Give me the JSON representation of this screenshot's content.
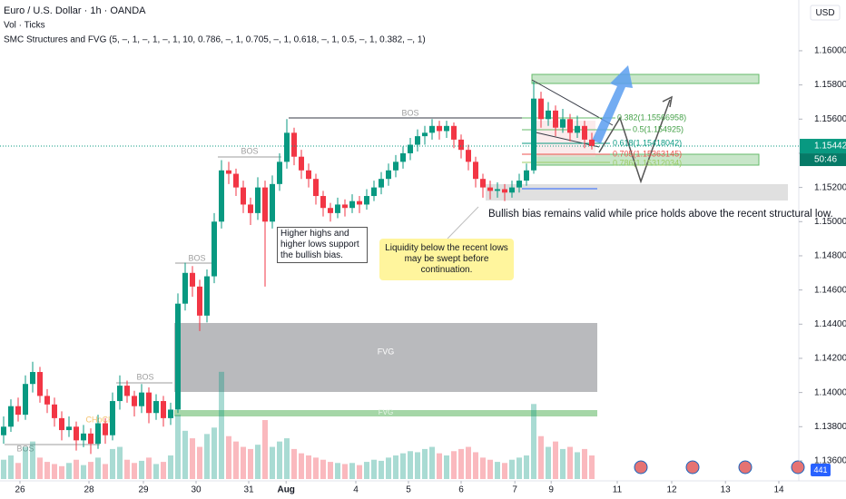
{
  "chart_data": {
    "type": "candlestick",
    "title": "Euro / U.S. Dollar · 1h · OANDA",
    "indicators": [
      "Vol · Ticks",
      "SMC Structures and FVG (5, –, 1, –, 1, –, 1, 10, 0.786, –, 1, 0.705, –, 1, 0.618, –, 1, 0.5, –, 1, 0.382, –, 1)"
    ],
    "currency": "USD",
    "up_color": "#089981",
    "down_color": "#f23645",
    "ylim": [
      1.13483,
      1.16297
    ],
    "yticks": [
      {
        "value": 1.16,
        "label": "1.16000"
      },
      {
        "value": 1.158,
        "label": "1.15800"
      },
      {
        "value": 1.156,
        "label": "1.15600"
      },
      {
        "value": 1.154,
        "label": "1.15400"
      },
      {
        "value": 1.152,
        "label": "1.15200"
      },
      {
        "value": 1.15,
        "label": "1.15000"
      },
      {
        "value": 1.148,
        "label": "1.14800"
      },
      {
        "value": 1.146,
        "label": "1.14600"
      },
      {
        "value": 1.144,
        "label": "1.14400"
      },
      {
        "value": 1.142,
        "label": "1.14200"
      },
      {
        "value": 1.14,
        "label": "1.14000"
      },
      {
        "value": 1.138,
        "label": "1.13800"
      },
      {
        "value": 1.136,
        "label": "1.13600"
      }
    ],
    "xlim": [
      0,
      110
    ],
    "xticks": [
      {
        "value": 2.75,
        "label": "26"
      },
      {
        "value": 12.25,
        "label": "28"
      },
      {
        "value": 19.75,
        "label": "29"
      },
      {
        "value": 27,
        "label": "30"
      },
      {
        "value": 34.25,
        "label": "31"
      },
      {
        "value": 39.4,
        "label": "Aug"
      },
      {
        "value": 49,
        "label": "4"
      },
      {
        "value": 56.25,
        "label": "5"
      },
      {
        "value": 63.5,
        "label": "6"
      },
      {
        "value": 70.9,
        "label": "7"
      },
      {
        "value": 75.9,
        "label": "9"
      },
      {
        "value": 85,
        "label": "11"
      },
      {
        "value": 92.5,
        "label": "12"
      },
      {
        "value": 99.9,
        "label": "13"
      },
      {
        "value": 107.25,
        "label": "14"
      }
    ],
    "grid": false,
    "ohlc": [
      [
        1.1375,
        1.1386,
        1.137,
        1.138
      ],
      [
        1.138,
        1.1396,
        1.1377,
        1.1392
      ],
      [
        1.1392,
        1.1397,
        1.1383,
        1.1387
      ],
      [
        1.1387,
        1.141,
        1.1384,
        1.1405
      ],
      [
        1.1405,
        1.1418,
        1.14,
        1.1412
      ],
      [
        1.1412,
        1.1415,
        1.1394,
        1.1398
      ],
      [
        1.1398,
        1.1402,
        1.1388,
        1.1393
      ],
      [
        1.1393,
        1.1397,
        1.138,
        1.1385
      ],
      [
        1.1385,
        1.1389,
        1.1372,
        1.1378
      ],
      [
        1.1378,
        1.1386,
        1.1374,
        1.138
      ],
      [
        1.138,
        1.1383,
        1.1366,
        1.1372
      ],
      [
        1.1372,
        1.1381,
        1.1368,
        1.1376
      ],
      [
        1.1376,
        1.1379,
        1.1364,
        1.137
      ],
      [
        1.137,
        1.1387,
        1.1367,
        1.1382
      ],
      [
        1.1382,
        1.1385,
        1.137,
        1.1375
      ],
      [
        1.1375,
        1.14,
        1.1372,
        1.1395
      ],
      [
        1.1395,
        1.141,
        1.139,
        1.1404
      ],
      [
        1.1404,
        1.1407,
        1.1394,
        1.1398
      ],
      [
        1.1398,
        1.1401,
        1.1386,
        1.1392
      ],
      [
        1.1392,
        1.1405,
        1.1388,
        1.14
      ],
      [
        1.14,
        1.1403,
        1.1382,
        1.1388
      ],
      [
        1.1388,
        1.1399,
        1.1384,
        1.1395
      ],
      [
        1.1395,
        1.1398,
        1.138,
        1.1385
      ],
      [
        1.1385,
        1.1394,
        1.1381,
        1.139
      ],
      [
        1.139,
        1.1458,
        1.1388,
        1.1452
      ],
      [
        1.1452,
        1.1476,
        1.1448,
        1.147
      ],
      [
        1.147,
        1.1474,
        1.1456,
        1.1462
      ],
      [
        1.1462,
        1.1466,
        1.1436,
        1.1445
      ],
      [
        1.1445,
        1.1472,
        1.1441,
        1.1468
      ],
      [
        1.1468,
        1.1505,
        1.1464,
        1.15
      ],
      [
        1.15,
        1.1536,
        1.1496,
        1.153
      ],
      [
        1.153,
        1.1535,
        1.1522,
        1.1528
      ],
      [
        1.1528,
        1.1531,
        1.1515,
        1.152
      ],
      [
        1.152,
        1.1524,
        1.1505,
        1.151
      ],
      [
        1.151,
        1.1514,
        1.1498,
        1.1505
      ],
      [
        1.1505,
        1.1526,
        1.1501,
        1.152
      ],
      [
        1.152,
        1.1524,
        1.1462,
        1.15
      ],
      [
        1.15,
        1.1527,
        1.1496,
        1.1522
      ],
      [
        1.1522,
        1.154,
        1.1518,
        1.1535
      ],
      [
        1.1535,
        1.156,
        1.1531,
        1.1552
      ],
      [
        1.1552,
        1.1555,
        1.1533,
        1.1538
      ],
      [
        1.1538,
        1.1542,
        1.1525,
        1.153
      ],
      [
        1.153,
        1.1534,
        1.152,
        1.1525
      ],
      [
        1.1525,
        1.1528,
        1.151,
        1.1515
      ],
      [
        1.1515,
        1.1518,
        1.1503,
        1.1508
      ],
      [
        1.1508,
        1.1511,
        1.15,
        1.1505
      ],
      [
        1.1505,
        1.1514,
        1.1502,
        1.151
      ],
      [
        1.151,
        1.1513,
        1.1503,
        1.1508
      ],
      [
        1.1508,
        1.1516,
        1.1505,
        1.1512
      ],
      [
        1.1512,
        1.1515,
        1.1505,
        1.151
      ],
      [
        1.151,
        1.1519,
        1.1507,
        1.1515
      ],
      [
        1.1515,
        1.1524,
        1.1512,
        1.152
      ],
      [
        1.152,
        1.1529,
        1.1516,
        1.1525
      ],
      [
        1.1525,
        1.1534,
        1.1521,
        1.153
      ],
      [
        1.153,
        1.1539,
        1.1526,
        1.1535
      ],
      [
        1.1535,
        1.1544,
        1.1531,
        1.154
      ],
      [
        1.154,
        1.1549,
        1.1536,
        1.1545
      ],
      [
        1.1545,
        1.1554,
        1.1541,
        1.155
      ],
      [
        1.155,
        1.1556,
        1.1545,
        1.1552
      ],
      [
        1.1552,
        1.156,
        1.1548,
        1.1556
      ],
      [
        1.1556,
        1.1559,
        1.1548,
        1.1553
      ],
      [
        1.1553,
        1.1559,
        1.1549,
        1.1556
      ],
      [
        1.1556,
        1.1558,
        1.1543,
        1.1548
      ],
      [
        1.1548,
        1.1551,
        1.1537,
        1.1542
      ],
      [
        1.1542,
        1.1545,
        1.153,
        1.1535
      ],
      [
        1.1535,
        1.1538,
        1.152,
        1.1525
      ],
      [
        1.1525,
        1.1528,
        1.1514,
        1.152
      ],
      [
        1.152,
        1.1524,
        1.1513,
        1.1518
      ],
      [
        1.1518,
        1.1523,
        1.1514,
        1.1519
      ],
      [
        1.1519,
        1.1522,
        1.1512,
        1.1517
      ],
      [
        1.1517,
        1.1524,
        1.1514,
        1.152
      ],
      [
        1.152,
        1.1528,
        1.1517,
        1.1524
      ],
      [
        1.1524,
        1.1534,
        1.1521,
        1.153
      ],
      [
        1.153,
        1.1582,
        1.1528,
        1.1572
      ],
      [
        1.1572,
        1.1576,
        1.1555,
        1.156
      ],
      [
        1.156,
        1.157,
        1.1556,
        1.1565
      ],
      [
        1.1565,
        1.1568,
        1.155,
        1.1555
      ],
      [
        1.1555,
        1.1566,
        1.1552,
        1.156
      ],
      [
        1.156,
        1.1563,
        1.1547,
        1.1552
      ],
      [
        1.1552,
        1.1562,
        1.1549,
        1.1556
      ],
      [
        1.1556,
        1.1559,
        1.1543,
        1.1548
      ],
      [
        1.1548,
        1.1552,
        1.15422,
        1.15442
      ]
    ],
    "volume": [
      18,
      22,
      15,
      30,
      35,
      20,
      16,
      14,
      12,
      15,
      18,
      13,
      16,
      20,
      14,
      28,
      30,
      18,
      15,
      17,
      20,
      14,
      16,
      22,
      60,
      45,
      38,
      30,
      42,
      48,
      100,
      40,
      35,
      30,
      28,
      32,
      55,
      30,
      35,
      38,
      28,
      24,
      22,
      20,
      18,
      16,
      15,
      14,
      15,
      13,
      16,
      18,
      17,
      20,
      22,
      24,
      26,
      25,
      28,
      30,
      24,
      22,
      26,
      28,
      30,
      25,
      20,
      18,
      16,
      15,
      18,
      20,
      22,
      70,
      40,
      30,
      35,
      28,
      30,
      25,
      28,
      22
    ],
    "vlim": [
      0,
      110
    ],
    "last_price": 1.15442,
    "countdown": "50:46",
    "badge": 441,
    "structure_labels": [
      "BOS",
      "CHoCH",
      "BOS",
      "BOS",
      "BOS",
      "BOS"
    ],
    "zone_labels": [
      "FVG",
      "FVG"
    ],
    "fib_labels": [
      "0.382(1.15566958)",
      "0.5(1.154925)",
      "0.618(1.15418042)",
      "0.705(1.15363145)",
      "0.786(1.15312034)"
    ],
    "notes": [
      "Higher highs and higher lows support the bullish bias.",
      "Liquidity below the recent lows may be swept before continuation.",
      "Bullish bias remains valid while price holds above the recent structural low."
    ]
  }
}
